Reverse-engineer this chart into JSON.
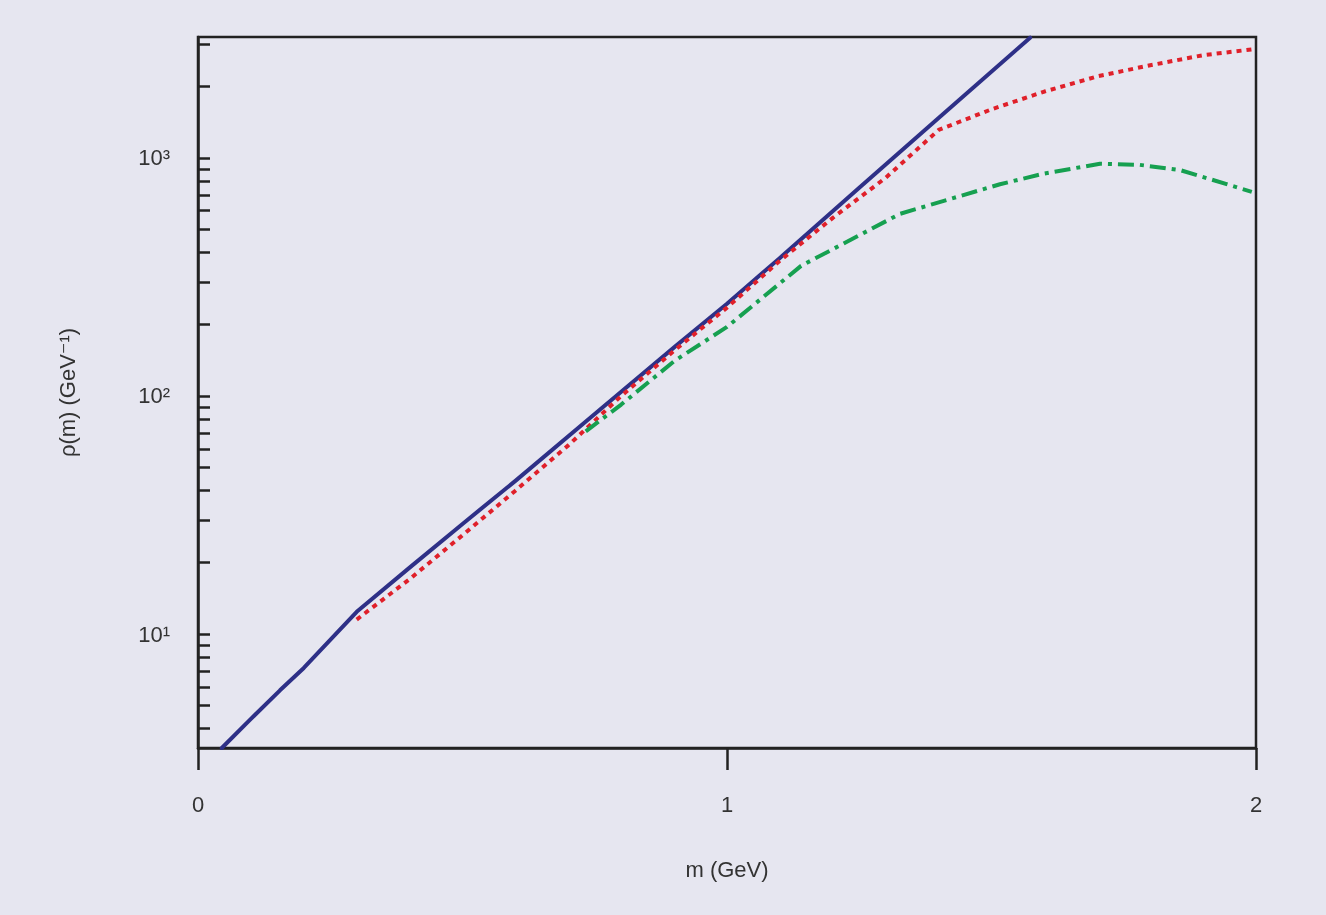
{
  "chart_data": {
    "type": "line",
    "xlabel": "m (GeV)",
    "ylabel": "ρ(m) (GeV⁻¹)",
    "log": "y",
    "grid": false,
    "marker": "none",
    "xlim": [
      0,
      2
    ],
    "xticks": [
      0,
      1,
      2
    ],
    "ylim": [
      3.32,
      3220
    ],
    "yticks": [
      {
        "value": 4,
        "label": null
      },
      {
        "value": 5,
        "label": null
      },
      {
        "value": 6,
        "label": null
      },
      {
        "value": 7,
        "label": null
      },
      {
        "value": 8,
        "label": null
      },
      {
        "value": 9,
        "label": null
      },
      {
        "value": 10,
        "label": "10¹"
      },
      {
        "value": 20,
        "label": null
      },
      {
        "value": 30,
        "label": null
      },
      {
        "value": 40,
        "label": null
      },
      {
        "value": 50,
        "label": null
      },
      {
        "value": 60,
        "label": null
      },
      {
        "value": 70,
        "label": null
      },
      {
        "value": 80,
        "label": null
      },
      {
        "value": 90,
        "label": null
      },
      {
        "value": 100,
        "label": "10²"
      },
      {
        "value": 200,
        "label": null
      },
      {
        "value": 300,
        "label": null
      },
      {
        "value": 400,
        "label": null
      },
      {
        "value": 500,
        "label": null
      },
      {
        "value": 600,
        "label": null
      },
      {
        "value": 700,
        "label": null
      },
      {
        "value": 800,
        "label": null
      },
      {
        "value": 900,
        "label": null
      },
      {
        "value": 1000,
        "label": "10³"
      },
      {
        "value": 2000,
        "label": null
      },
      {
        "value": 3000,
        "label": null
      }
    ],
    "series": [
      {
        "color": "#2e3087",
        "line_style": "solid",
        "x": [
          0.045,
          0.1,
          0.155,
          0.2,
          0.3,
          0.4,
          0.5,
          0.6,
          0.75,
          0.9,
          1.0,
          1.1,
          1.25,
          1.4,
          1.573
        ],
        "values": [
          3.32,
          4.4,
          5.8,
          7.2,
          12.4,
          19,
          29,
          44,
          84,
          160,
          244,
          380,
          750,
          1470,
          3200
        ]
      },
      {
        "color": "#e0202a",
        "line_style": "dotted",
        "x": [
          0.3,
          0.4,
          0.5,
          0.6,
          0.7,
          0.8,
          0.9,
          1.0,
          1.1,
          1.2,
          1.3,
          1.4,
          1.5,
          1.6,
          1.7,
          1.8,
          1.9,
          2.0
        ],
        "values": [
          11.5,
          17,
          26,
          40,
          62,
          100,
          155,
          235,
          370,
          560,
          825,
          1310,
          1600,
          1900,
          2200,
          2450,
          2700,
          2870
        ]
      },
      {
        "color": "#16a050",
        "line_style": "dashdot",
        "x": [
          0.733,
          0.8,
          0.9,
          1.0,
          1.14,
          1.327,
          1.516,
          1.6,
          1.705,
          1.78,
          1.856,
          1.992
        ],
        "values": [
          71,
          92,
          140,
          195,
          352,
          582,
          775,
          860,
          945,
          935,
          890,
          720
        ]
      }
    ]
  }
}
